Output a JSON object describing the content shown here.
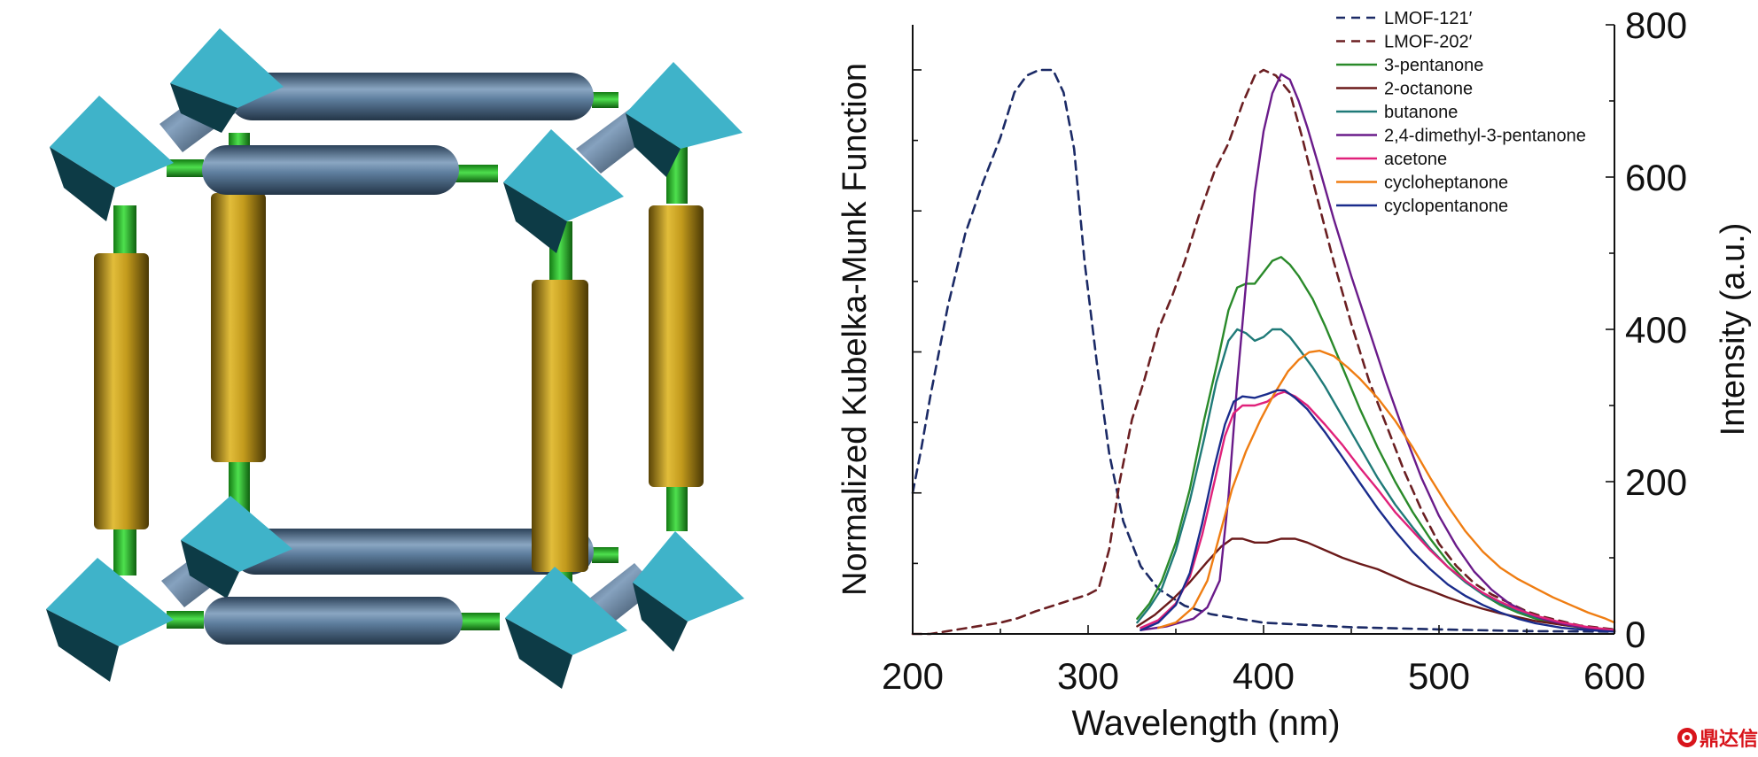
{
  "framework": {
    "colors": {
      "node": "#3fb3c9",
      "node_dark": "#0d3b46",
      "connector": "#2fbf2f",
      "rod_blue": "#4e6f8e",
      "rod_gold": "#c8a21e"
    }
  },
  "watermark": {
    "text": "鼎达信",
    "icon": "seal-icon",
    "color": "#d8141b"
  },
  "chart_data": {
    "type": "line",
    "title": "",
    "xlabel": "Wavelength (nm)",
    "ylabel_left": "Normalized Kubelka-Munk Function",
    "ylabel_right": "Intensity (a.u.)",
    "xlim": [
      200,
      600
    ],
    "ylim_right": [
      0,
      800
    ],
    "ylim_left": [
      0,
      1.08
    ],
    "x_ticks": [
      200,
      300,
      400,
      500,
      600
    ],
    "x_tick_labels": [
      "200",
      "300",
      "400",
      "500",
      "600"
    ],
    "y_right_ticks": [
      0,
      200,
      400,
      600,
      800
    ],
    "y_right_tick_labels": [
      "0",
      "200",
      "400",
      "600",
      "800"
    ],
    "left_axis_ticks": [
      0,
      0.25,
      0.5,
      0.75,
      1.0
    ],
    "legend_position": "top-right",
    "grid": false,
    "series": [
      {
        "name": "LMOF-121′",
        "axis": "left",
        "dash": true,
        "color": "#1b2a66",
        "points": [
          [
            200,
            0.25
          ],
          [
            205,
            0.33
          ],
          [
            210,
            0.42
          ],
          [
            220,
            0.58
          ],
          [
            230,
            0.71
          ],
          [
            240,
            0.8
          ],
          [
            250,
            0.88
          ],
          [
            258,
            0.96
          ],
          [
            265,
            0.99
          ],
          [
            272,
            1.0
          ],
          [
            280,
            1.0
          ],
          [
            286,
            0.96
          ],
          [
            292,
            0.86
          ],
          [
            298,
            0.66
          ],
          [
            305,
            0.48
          ],
          [
            312,
            0.32
          ],
          [
            320,
            0.2
          ],
          [
            330,
            0.12
          ],
          [
            340,
            0.08
          ],
          [
            355,
            0.05
          ],
          [
            370,
            0.035
          ],
          [
            400,
            0.02
          ],
          [
            450,
            0.012
          ],
          [
            500,
            0.008
          ],
          [
            550,
            0.005
          ],
          [
            600,
            0.004
          ]
        ]
      },
      {
        "name": "LMOF-202′",
        "axis": "left",
        "dash": true,
        "color": "#6b1f22",
        "points": [
          [
            200,
            0.0
          ],
          [
            210,
            0.0
          ],
          [
            220,
            0.005
          ],
          [
            230,
            0.01
          ],
          [
            240,
            0.015
          ],
          [
            250,
            0.02
          ],
          [
            260,
            0.028
          ],
          [
            270,
            0.04
          ],
          [
            280,
            0.05
          ],
          [
            290,
            0.06
          ],
          [
            300,
            0.07
          ],
          [
            306,
            0.08
          ],
          [
            312,
            0.15
          ],
          [
            318,
            0.27
          ],
          [
            325,
            0.38
          ],
          [
            332,
            0.45
          ],
          [
            340,
            0.54
          ],
          [
            348,
            0.6
          ],
          [
            355,
            0.66
          ],
          [
            363,
            0.74
          ],
          [
            372,
            0.82
          ],
          [
            380,
            0.87
          ],
          [
            388,
            0.94
          ],
          [
            395,
            0.99
          ],
          [
            400,
            1.0
          ],
          [
            407,
            0.99
          ],
          [
            415,
            0.96
          ],
          [
            422,
            0.88
          ],
          [
            430,
            0.78
          ],
          [
            440,
            0.66
          ],
          [
            450,
            0.55
          ],
          [
            460,
            0.45
          ],
          [
            470,
            0.37
          ],
          [
            480,
            0.29
          ],
          [
            490,
            0.22
          ],
          [
            500,
            0.16
          ],
          [
            510,
            0.12
          ],
          [
            520,
            0.09
          ],
          [
            530,
            0.07
          ],
          [
            540,
            0.055
          ],
          [
            550,
            0.04
          ],
          [
            560,
            0.03
          ],
          [
            580,
            0.015
          ],
          [
            600,
            0.008
          ]
        ]
      },
      {
        "name": "3-pentanone",
        "axis": "right",
        "color": "#2a8a2a",
        "points": [
          [
            328,
            20
          ],
          [
            335,
            40
          ],
          [
            342,
            70
          ],
          [
            350,
            120
          ],
          [
            358,
            190
          ],
          [
            366,
            280
          ],
          [
            374,
            360
          ],
          [
            380,
            425
          ],
          [
            385,
            455
          ],
          [
            390,
            460
          ],
          [
            395,
            460
          ],
          [
            400,
            475
          ],
          [
            405,
            490
          ],
          [
            410,
            495
          ],
          [
            415,
            485
          ],
          [
            420,
            470
          ],
          [
            428,
            440
          ],
          [
            435,
            405
          ],
          [
            445,
            350
          ],
          [
            455,
            295
          ],
          [
            465,
            245
          ],
          [
            475,
            200
          ],
          [
            485,
            160
          ],
          [
            495,
            125
          ],
          [
            505,
            95
          ],
          [
            515,
            70
          ],
          [
            525,
            52
          ],
          [
            535,
            38
          ],
          [
            545,
            28
          ],
          [
            555,
            20
          ],
          [
            570,
            12
          ],
          [
            585,
            7
          ],
          [
            600,
            4
          ]
        ]
      },
      {
        "name": "2-octanone",
        "axis": "right",
        "color": "#6b1a1a",
        "points": [
          [
            328,
            10
          ],
          [
            338,
            25
          ],
          [
            348,
            45
          ],
          [
            358,
            68
          ],
          [
            368,
            95
          ],
          [
            376,
            115
          ],
          [
            382,
            125
          ],
          [
            388,
            125
          ],
          [
            395,
            120
          ],
          [
            402,
            120
          ],
          [
            410,
            125
          ],
          [
            418,
            125
          ],
          [
            425,
            120
          ],
          [
            435,
            110
          ],
          [
            445,
            100
          ],
          [
            455,
            92
          ],
          [
            465,
            85
          ],
          [
            475,
            75
          ],
          [
            485,
            65
          ],
          [
            495,
            57
          ],
          [
            505,
            48
          ],
          [
            515,
            40
          ],
          [
            525,
            33
          ],
          [
            535,
            27
          ],
          [
            545,
            22
          ],
          [
            555,
            17
          ],
          [
            570,
            12
          ],
          [
            585,
            8
          ],
          [
            600,
            5
          ]
        ]
      },
      {
        "name": "butanone",
        "axis": "right",
        "color": "#1f7a78",
        "points": [
          [
            328,
            15
          ],
          [
            335,
            35
          ],
          [
            342,
            60
          ],
          [
            350,
            110
          ],
          [
            358,
            175
          ],
          [
            366,
            255
          ],
          [
            373,
            330
          ],
          [
            380,
            385
          ],
          [
            385,
            400
          ],
          [
            390,
            395
          ],
          [
            395,
            385
          ],
          [
            400,
            390
          ],
          [
            405,
            400
          ],
          [
            410,
            400
          ],
          [
            415,
            390
          ],
          [
            420,
            375
          ],
          [
            428,
            350
          ],
          [
            435,
            325
          ],
          [
            445,
            285
          ],
          [
            455,
            245
          ],
          [
            465,
            205
          ],
          [
            475,
            170
          ],
          [
            485,
            140
          ],
          [
            495,
            112
          ],
          [
            505,
            88
          ],
          [
            515,
            68
          ],
          [
            525,
            52
          ],
          [
            535,
            40
          ],
          [
            545,
            30
          ],
          [
            555,
            22
          ],
          [
            570,
            14
          ],
          [
            585,
            8
          ],
          [
            600,
            5
          ]
        ]
      },
      {
        "name": "2,4-dimethyl-3-pentanone",
        "axis": "right",
        "color": "#6a1b8a",
        "points": [
          [
            330,
            5
          ],
          [
            345,
            10
          ],
          [
            360,
            20
          ],
          [
            368,
            35
          ],
          [
            375,
            70
          ],
          [
            380,
            180
          ],
          [
            385,
            330
          ],
          [
            390,
            460
          ],
          [
            395,
            580
          ],
          [
            400,
            660
          ],
          [
            405,
            710
          ],
          [
            410,
            735
          ],
          [
            415,
            728
          ],
          [
            420,
            700
          ],
          [
            425,
            665
          ],
          [
            432,
            610
          ],
          [
            440,
            545
          ],
          [
            450,
            470
          ],
          [
            460,
            400
          ],
          [
            470,
            330
          ],
          [
            480,
            265
          ],
          [
            490,
            205
          ],
          [
            500,
            155
          ],
          [
            510,
            115
          ],
          [
            520,
            82
          ],
          [
            530,
            58
          ],
          [
            540,
            40
          ],
          [
            550,
            28
          ],
          [
            560,
            19
          ],
          [
            575,
            11
          ],
          [
            590,
            6
          ],
          [
            600,
            4
          ]
        ]
      },
      {
        "name": "acetone",
        "axis": "right",
        "color": "#e0217a",
        "points": [
          [
            330,
            8
          ],
          [
            340,
            18
          ],
          [
            350,
            40
          ],
          [
            358,
            75
          ],
          [
            365,
            130
          ],
          [
            372,
            200
          ],
          [
            378,
            260
          ],
          [
            383,
            290
          ],
          [
            388,
            300
          ],
          [
            395,
            300
          ],
          [
            402,
            305
          ],
          [
            408,
            315
          ],
          [
            412,
            318
          ],
          [
            418,
            312
          ],
          [
            425,
            300
          ],
          [
            435,
            275
          ],
          [
            445,
            248
          ],
          [
            455,
            218
          ],
          [
            465,
            190
          ],
          [
            475,
            160
          ],
          [
            485,
            135
          ],
          [
            495,
            110
          ],
          [
            505,
            88
          ],
          [
            515,
            70
          ],
          [
            525,
            54
          ],
          [
            535,
            42
          ],
          [
            545,
            32
          ],
          [
            555,
            24
          ],
          [
            570,
            15
          ],
          [
            585,
            9
          ],
          [
            600,
            5
          ]
        ]
      },
      {
        "name": "cycloheptanone",
        "axis": "right",
        "color": "#ef7d12",
        "points": [
          [
            340,
            8
          ],
          [
            350,
            15
          ],
          [
            360,
            35
          ],
          [
            368,
            70
          ],
          [
            375,
            130
          ],
          [
            382,
            190
          ],
          [
            390,
            240
          ],
          [
            398,
            280
          ],
          [
            406,
            315
          ],
          [
            414,
            345
          ],
          [
            420,
            360
          ],
          [
            426,
            370
          ],
          [
            432,
            372
          ],
          [
            440,
            365
          ],
          [
            448,
            350
          ],
          [
            455,
            335
          ],
          [
            465,
            310
          ],
          [
            475,
            280
          ],
          [
            485,
            245
          ],
          [
            495,
            205
          ],
          [
            505,
            168
          ],
          [
            515,
            135
          ],
          [
            525,
            108
          ],
          [
            535,
            87
          ],
          [
            545,
            72
          ],
          [
            555,
            60
          ],
          [
            565,
            48
          ],
          [
            575,
            38
          ],
          [
            585,
            28
          ],
          [
            595,
            20
          ],
          [
            600,
            15
          ]
        ]
      },
      {
        "name": "cyclopentanone",
        "axis": "right",
        "color": "#1a2c8c",
        "points": [
          [
            330,
            5
          ],
          [
            340,
            15
          ],
          [
            350,
            38
          ],
          [
            358,
            80
          ],
          [
            365,
            145
          ],
          [
            372,
            220
          ],
          [
            378,
            275
          ],
          [
            383,
            305
          ],
          [
            388,
            312
          ],
          [
            395,
            310
          ],
          [
            402,
            315
          ],
          [
            408,
            320
          ],
          [
            412,
            320
          ],
          [
            418,
            310
          ],
          [
            425,
            295
          ],
          [
            435,
            265
          ],
          [
            445,
            232
          ],
          [
            455,
            198
          ],
          [
            465,
            165
          ],
          [
            475,
            135
          ],
          [
            485,
            108
          ],
          [
            495,
            85
          ],
          [
            505,
            65
          ],
          [
            515,
            50
          ],
          [
            525,
            38
          ],
          [
            535,
            28
          ],
          [
            545,
            20
          ],
          [
            555,
            14
          ],
          [
            570,
            8
          ],
          [
            585,
            5
          ],
          [
            600,
            3
          ]
        ]
      }
    ]
  }
}
